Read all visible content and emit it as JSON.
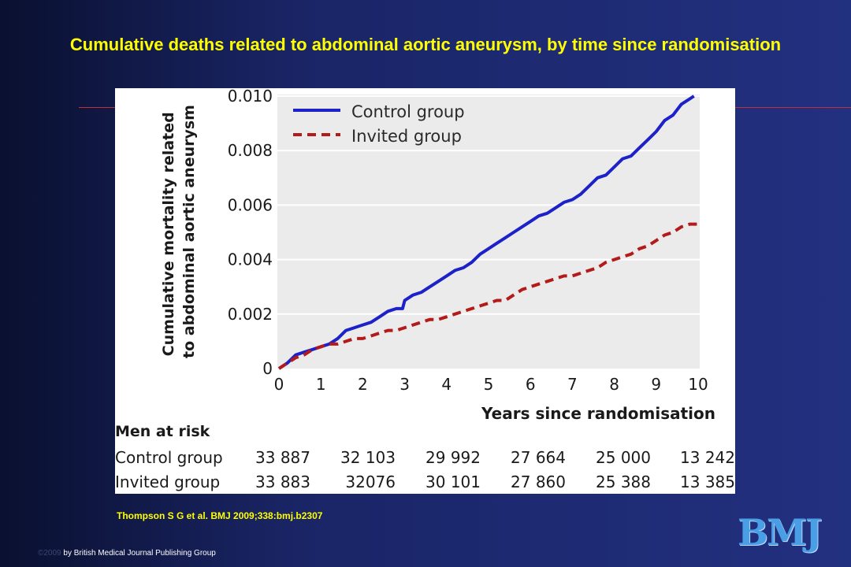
{
  "slide": {
    "title": "Cumulative deaths related to abdominal aortic aneurysm, by time since randomisation",
    "citation": "Thompson S G et al. BMJ 2009;338:bmj.b2307",
    "copyright_year": "©2009",
    "copyright_text": "by British Medical Journal Publishing Group",
    "logo_text": "BMJ"
  },
  "colors": {
    "title": "#ffff00",
    "control_line": "#1c22c8",
    "invited_line": "#b31b1b",
    "plot_background": "#ebebeb"
  },
  "chart_data": {
    "type": "line",
    "title": "",
    "xlabel": "Years since randomisation",
    "ylabel": "Cumulative mortality related to abdominal aortic aneurysm",
    "xlim": [
      0,
      10
    ],
    "ylim": [
      0,
      0.01
    ],
    "x_ticks": [
      "0",
      "1",
      "2",
      "3",
      "4",
      "5",
      "6",
      "7",
      "8",
      "9",
      "10"
    ],
    "y_ticks": [
      "0",
      "0.002",
      "0.004",
      "0.006",
      "0.008",
      "0.010"
    ],
    "grid": "horizontal",
    "legend_position": "top-left",
    "series": [
      {
        "name": "Control group",
        "style": "solid",
        "x": [
          0,
          0.2,
          0.4,
          0.6,
          0.8,
          1.0,
          1.2,
          1.4,
          1.6,
          1.8,
          2.0,
          2.2,
          2.4,
          2.6,
          2.8,
          2.95,
          3.0,
          3.2,
          3.4,
          3.6,
          3.8,
          4.0,
          4.2,
          4.4,
          4.6,
          4.8,
          5.0,
          5.2,
          5.4,
          5.6,
          5.8,
          6.0,
          6.2,
          6.4,
          6.6,
          6.8,
          7.0,
          7.2,
          7.4,
          7.6,
          7.8,
          8.0,
          8.2,
          8.4,
          8.6,
          8.8,
          9.0,
          9.2,
          9.4,
          9.6,
          9.8,
          9.9
        ],
        "values": [
          0,
          0.0002,
          0.0005,
          0.0006,
          0.0007,
          0.0008,
          0.0009,
          0.0011,
          0.0014,
          0.0015,
          0.0016,
          0.0017,
          0.0019,
          0.0021,
          0.0022,
          0.0022,
          0.0025,
          0.0027,
          0.0028,
          0.003,
          0.0032,
          0.0034,
          0.0036,
          0.0037,
          0.0039,
          0.0042,
          0.0044,
          0.0046,
          0.0048,
          0.005,
          0.0052,
          0.0054,
          0.0056,
          0.0057,
          0.0059,
          0.0061,
          0.0062,
          0.0064,
          0.0067,
          0.007,
          0.0071,
          0.0074,
          0.0077,
          0.0078,
          0.0081,
          0.0084,
          0.0087,
          0.0091,
          0.0093,
          0.0097,
          0.0099,
          0.01
        ]
      },
      {
        "name": "Invited group",
        "style": "dashed",
        "x": [
          0,
          0.2,
          0.4,
          0.6,
          0.8,
          1.0,
          1.2,
          1.4,
          1.6,
          1.8,
          2.0,
          2.2,
          2.4,
          2.6,
          2.8,
          3.0,
          3.2,
          3.4,
          3.6,
          3.8,
          4.0,
          4.2,
          4.4,
          4.6,
          4.8,
          5.0,
          5.2,
          5.4,
          5.6,
          5.8,
          6.0,
          6.2,
          6.4,
          6.6,
          6.8,
          7.0,
          7.2,
          7.4,
          7.6,
          7.8,
          8.0,
          8.2,
          8.4,
          8.6,
          8.8,
          9.0,
          9.2,
          9.4,
          9.6,
          9.8,
          10.0
        ],
        "values": [
          0,
          0.0002,
          0.0004,
          0.0005,
          0.0007,
          0.0008,
          0.0009,
          0.0009,
          0.001,
          0.0011,
          0.0011,
          0.0012,
          0.0013,
          0.0014,
          0.0014,
          0.0015,
          0.0016,
          0.0017,
          0.0018,
          0.0018,
          0.0019,
          0.002,
          0.0021,
          0.0022,
          0.0023,
          0.0024,
          0.0025,
          0.0025,
          0.0027,
          0.0029,
          0.003,
          0.0031,
          0.0032,
          0.0033,
          0.0034,
          0.0034,
          0.0035,
          0.0036,
          0.0037,
          0.0039,
          0.004,
          0.0041,
          0.0042,
          0.0044,
          0.0045,
          0.0047,
          0.0049,
          0.005,
          0.0052,
          0.0053,
          0.0053
        ]
      }
    ],
    "risk_table": {
      "heading": "Men at risk",
      "rows": [
        {
          "label": "Control group",
          "values": [
            "33 887",
            "32 103",
            "29 992",
            "27 664",
            "25 000",
            "13 242"
          ]
        },
        {
          "label": "Invited group",
          "values": [
            "33 883",
            "32076",
            "30 101",
            "27 860",
            "25 388",
            "13 385"
          ]
        }
      ]
    }
  }
}
